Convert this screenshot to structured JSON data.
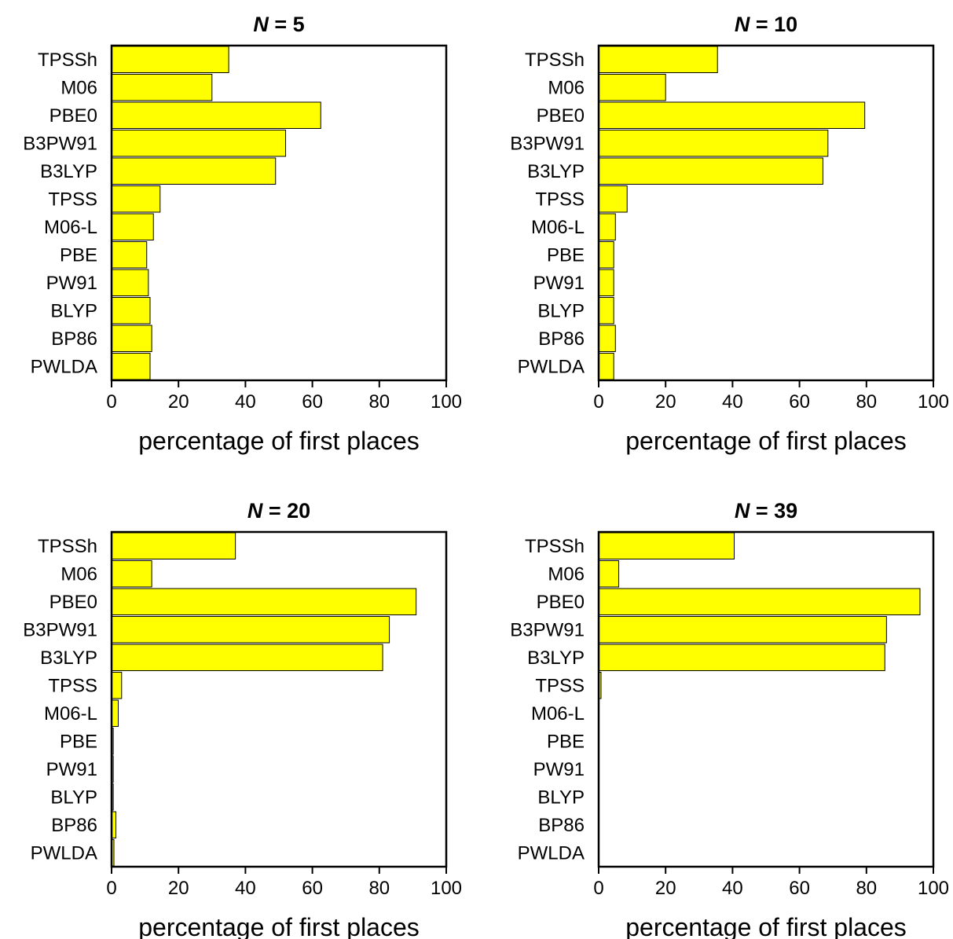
{
  "colors": {
    "bar": "#ffff00",
    "axis": "#000000"
  },
  "chart_data": [
    {
      "type": "bar",
      "orientation": "horizontal",
      "title_prefix": "N",
      "title_suffix": " = 5",
      "xlabel": "percentage of first places",
      "xlim": [
        0,
        100
      ],
      "xticks": [
        0,
        20,
        40,
        60,
        80,
        100
      ],
      "categories": [
        "TPSSh",
        "M06",
        "PBE0",
        "B3PW91",
        "B3LYP",
        "TPSS",
        "M06-L",
        "PBE",
        "PW91",
        "BLYP",
        "BP86",
        "PWLDA"
      ],
      "values": [
        35,
        30,
        62.5,
        52,
        49,
        14.5,
        12.5,
        10.5,
        11,
        11.5,
        12,
        11.5
      ]
    },
    {
      "type": "bar",
      "orientation": "horizontal",
      "title_prefix": "N",
      "title_suffix": " = 10",
      "xlabel": "percentage of first places",
      "xlim": [
        0,
        100
      ],
      "xticks": [
        0,
        20,
        40,
        60,
        80,
        100
      ],
      "categories": [
        "TPSSh",
        "M06",
        "PBE0",
        "B3PW91",
        "B3LYP",
        "TPSS",
        "M06-L",
        "PBE",
        "PW91",
        "BLYP",
        "BP86",
        "PWLDA"
      ],
      "values": [
        35.5,
        20,
        79.5,
        68.5,
        67,
        8.5,
        5,
        4.5,
        4.5,
        4.5,
        5,
        4.5
      ]
    },
    {
      "type": "bar",
      "orientation": "horizontal",
      "title_prefix": "N",
      "title_suffix": " = 20",
      "xlabel": "percentage of first places",
      "xlim": [
        0,
        100
      ],
      "xticks": [
        0,
        20,
        40,
        60,
        80,
        100
      ],
      "categories": [
        "TPSSh",
        "M06",
        "PBE0",
        "B3PW91",
        "B3LYP",
        "TPSS",
        "M06-L",
        "PBE",
        "PW91",
        "BLYP",
        "BP86",
        "PWLDA"
      ],
      "values": [
        37,
        12,
        91,
        83,
        81,
        3,
        2,
        0.5,
        0.5,
        0.5,
        1.3,
        0.7
      ]
    },
    {
      "type": "bar",
      "orientation": "horizontal",
      "title_prefix": "N",
      "title_suffix": " = 39",
      "xlabel": "percentage of first places",
      "xlim": [
        0,
        100
      ],
      "xticks": [
        0,
        20,
        40,
        60,
        80,
        100
      ],
      "categories": [
        "TPSSh",
        "M06",
        "PBE0",
        "B3PW91",
        "B3LYP",
        "TPSS",
        "M06-L",
        "PBE",
        "PW91",
        "BLYP",
        "BP86",
        "PWLDA"
      ],
      "values": [
        40.5,
        6,
        96,
        86,
        85.5,
        0.7,
        0,
        0,
        0,
        0,
        0,
        0
      ]
    }
  ]
}
